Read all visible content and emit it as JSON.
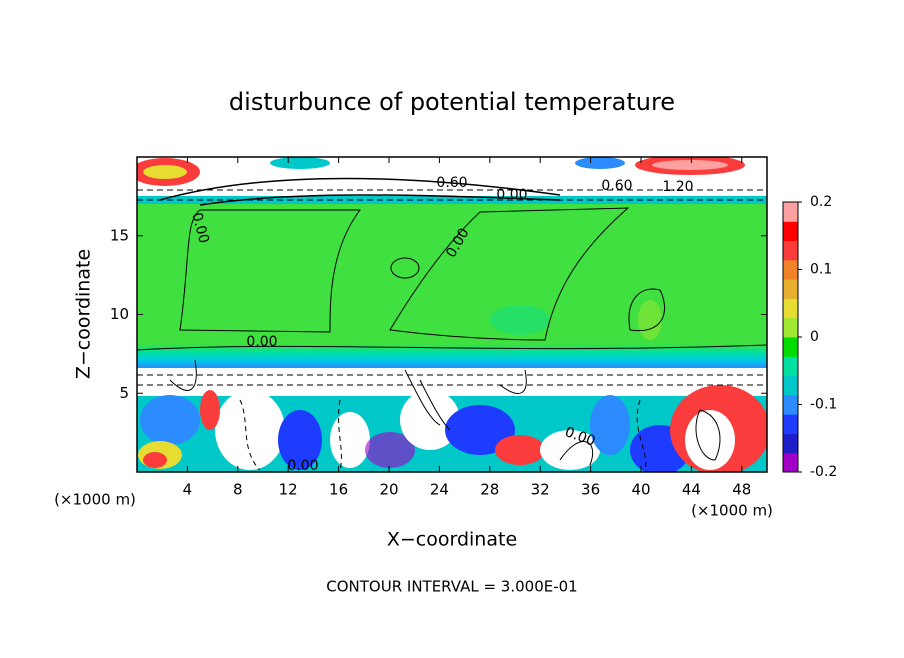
{
  "chart_data": {
    "type": "contour",
    "title": "disturbunce of potential temperature",
    "x_label": "X−coordinate",
    "y_label": "Z−coordinate",
    "x_unit": "(×1000 m)",
    "footer": "CONTOUR INTERVAL = 3.000E-01",
    "xlim": [
      0,
      50
    ],
    "xticks": [
      4,
      8,
      12,
      16,
      20,
      24,
      28,
      32,
      36,
      40,
      44,
      48
    ],
    "ylim": [
      0,
      20
    ],
    "yticks": [
      5,
      10,
      15
    ],
    "contour_labels": [
      "0.60",
      "0.00",
      "0.60",
      "1.20",
      "0.00",
      "0.00",
      "0.00",
      "0.00",
      "0.00"
    ],
    "colorbar": {
      "lim": [
        -0.2,
        0.2
      ],
      "ticks": [
        0.2,
        0.1,
        0,
        -0.1,
        -0.2
      ],
      "colors": [
        "#a000c8",
        "#1e1ec8",
        "#1e3cff",
        "#2c8cff",
        "#00c8c8",
        "#00e0a0",
        "#00dc00",
        "#a0e632",
        "#e6dc32",
        "#e6af2d",
        "#f08228",
        "#fa3c3c",
        "#ff0000",
        "#ffa0a0"
      ]
    }
  }
}
